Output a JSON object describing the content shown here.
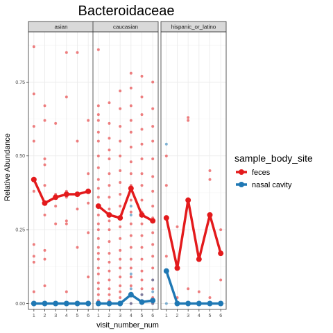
{
  "chart_data": {
    "type": "scatter",
    "title": "Bacteroidaceae",
    "xlabel": "visit_number_num",
    "ylabel": "Relative Abundance",
    "xlim": [
      0.5,
      6.5
    ],
    "ylim": [
      -0.02,
      0.92
    ],
    "x_ticks": [
      "1",
      "2",
      "3",
      "4",
      "5",
      "6"
    ],
    "y_ticks": [
      "0.00",
      "0.25",
      "0.50",
      "0.75"
    ],
    "y_tick_values": [
      0,
      0.25,
      0.5,
      0.75
    ],
    "grid": true,
    "legend": {
      "title": "sample_body_site",
      "position": "right",
      "entries": [
        {
          "label": "feces",
          "color": "#e31a1c"
        },
        {
          "label": "nasal cavity",
          "color": "#1f78b4"
        }
      ]
    },
    "colors": {
      "feces": "#e31a1c",
      "nasal cavity": "#1f78b4",
      "strip_bg": "#d9d9d9",
      "panel_border": "#333333",
      "grid": "#ebebeb"
    },
    "facets": [
      {
        "strip": "asian",
        "lines": [
          {
            "series": "feces",
            "x": [
              1,
              2,
              3,
              4,
              5,
              6
            ],
            "y": [
              0.42,
              0.34,
              0.36,
              0.37,
              0.37,
              0.38
            ]
          },
          {
            "series": "nasal cavity",
            "x": [
              1,
              2,
              3,
              4,
              5,
              6
            ],
            "y": [
              0.0,
              0.0,
              0.0,
              0.0,
              0.0,
              0.0
            ]
          }
        ],
        "points": {
          "feces": [
            [
              1,
              0.87
            ],
            [
              1,
              0.71
            ],
            [
              1,
              0.6
            ],
            [
              1,
              0.55
            ],
            [
              1,
              0.38
            ],
            [
              1,
              0.2
            ],
            [
              1,
              0.16
            ],
            [
              1,
              0.14
            ],
            [
              1,
              0.04
            ],
            [
              1,
              0.0
            ],
            [
              2,
              0.67
            ],
            [
              2,
              0.62
            ],
            [
              2,
              0.49
            ],
            [
              2,
              0.47
            ],
            [
              2,
              0.4
            ],
            [
              2,
              0.3
            ],
            [
              2,
              0.18
            ],
            [
              2,
              0.15
            ],
            [
              2,
              0.06
            ],
            [
              2,
              0.0
            ],
            [
              3,
              0.61
            ],
            [
              3,
              0.37
            ],
            [
              3,
              0.33
            ],
            [
              3,
              0.27
            ],
            [
              3,
              0.0
            ],
            [
              4,
              0.85
            ],
            [
              4,
              0.7
            ],
            [
              4,
              0.38
            ],
            [
              4,
              0.36
            ],
            [
              4,
              0.28
            ],
            [
              4,
              0.27
            ],
            [
              4,
              0.04
            ],
            [
              4,
              0.0
            ],
            [
              5,
              0.85
            ],
            [
              5,
              0.55
            ],
            [
              5,
              0.37
            ],
            [
              5,
              0.32
            ],
            [
              5,
              0.19
            ],
            [
              5,
              0.0
            ],
            [
              6,
              0.62
            ],
            [
              6,
              0.44
            ],
            [
              6,
              0.34
            ],
            [
              6,
              0.24
            ],
            [
              6,
              0.09
            ],
            [
              6,
              0.0
            ]
          ],
          "nasal cavity": [
            [
              1,
              0.0
            ],
            [
              2,
              0.0
            ],
            [
              3,
              0.0
            ],
            [
              4,
              0.0
            ],
            [
              5,
              0.0
            ],
            [
              6,
              0.0
            ]
          ]
        }
      },
      {
        "strip": "caucasian",
        "lines": [
          {
            "series": "feces",
            "x": [
              1,
              2,
              3,
              4,
              5,
              6
            ],
            "y": [
              0.33,
              0.3,
              0.29,
              0.39,
              0.3,
              0.28
            ]
          },
          {
            "series": "nasal cavity",
            "x": [
              1,
              2,
              3,
              4,
              5,
              6
            ],
            "y": [
              0.0,
              0.0,
              0.0,
              0.03,
              0.005,
              0.01
            ]
          }
        ],
        "points": {
          "feces": [
            [
              1,
              0.86
            ],
            [
              1,
              0.67
            ],
            [
              1,
              0.64
            ],
            [
              1,
              0.62
            ],
            [
              1,
              0.58
            ],
            [
              1,
              0.55
            ],
            [
              1,
              0.5
            ],
            [
              1,
              0.46
            ],
            [
              1,
              0.42
            ],
            [
              1,
              0.39
            ],
            [
              1,
              0.36
            ],
            [
              1,
              0.33
            ],
            [
              1,
              0.3
            ],
            [
              1,
              0.27
            ],
            [
              1,
              0.25
            ],
            [
              1,
              0.22
            ],
            [
              1,
              0.19
            ],
            [
              1,
              0.17
            ],
            [
              1,
              0.15
            ],
            [
              1,
              0.12
            ],
            [
              1,
              0.1
            ],
            [
              1,
              0.07
            ],
            [
              1,
              0.05
            ],
            [
              1,
              0.03
            ],
            [
              1,
              0.01
            ],
            [
              1,
              0.0
            ],
            [
              2,
              0.68
            ],
            [
              2,
              0.61
            ],
            [
              2,
              0.56
            ],
            [
              2,
              0.52
            ],
            [
              2,
              0.49
            ],
            [
              2,
              0.44
            ],
            [
              2,
              0.4
            ],
            [
              2,
              0.36
            ],
            [
              2,
              0.32
            ],
            [
              2,
              0.28
            ],
            [
              2,
              0.25
            ],
            [
              2,
              0.21
            ],
            [
              2,
              0.17
            ],
            [
              2,
              0.14
            ],
            [
              2,
              0.11
            ],
            [
              2,
              0.08
            ],
            [
              2,
              0.05
            ],
            [
              2,
              0.03
            ],
            [
              2,
              0.01
            ],
            [
              2,
              0.0
            ],
            [
              3,
              0.72
            ],
            [
              3,
              0.66
            ],
            [
              3,
              0.6
            ],
            [
              3,
              0.55
            ],
            [
              3,
              0.5
            ],
            [
              3,
              0.45
            ],
            [
              3,
              0.41
            ],
            [
              3,
              0.37
            ],
            [
              3,
              0.33
            ],
            [
              3,
              0.29
            ],
            [
              3,
              0.26
            ],
            [
              3,
              0.22
            ],
            [
              3,
              0.18
            ],
            [
              3,
              0.15
            ],
            [
              3,
              0.12
            ],
            [
              3,
              0.09
            ],
            [
              3,
              0.06
            ],
            [
              3,
              0.04
            ],
            [
              3,
              0.02
            ],
            [
              3,
              0.0
            ],
            [
              4,
              0.78
            ],
            [
              4,
              0.73
            ],
            [
              4,
              0.67
            ],
            [
              4,
              0.62
            ],
            [
              4,
              0.58
            ],
            [
              4,
              0.53
            ],
            [
              4,
              0.48
            ],
            [
              4,
              0.44
            ],
            [
              4,
              0.4
            ],
            [
              4,
              0.35
            ],
            [
              4,
              0.31
            ],
            [
              4,
              0.27
            ],
            [
              4,
              0.23
            ],
            [
              4,
              0.19
            ],
            [
              4,
              0.15
            ],
            [
              4,
              0.12
            ],
            [
              4,
              0.09
            ],
            [
              4,
              0.06
            ],
            [
              4,
              0.03
            ],
            [
              4,
              0.0
            ],
            [
              5,
              0.77
            ],
            [
              5,
              0.7
            ],
            [
              5,
              0.64
            ],
            [
              5,
              0.59
            ],
            [
              5,
              0.54
            ],
            [
              5,
              0.49
            ],
            [
              5,
              0.44
            ],
            [
              5,
              0.4
            ],
            [
              5,
              0.35
            ],
            [
              5,
              0.31
            ],
            [
              5,
              0.27
            ],
            [
              5,
              0.23
            ],
            [
              5,
              0.19
            ],
            [
              5,
              0.15
            ],
            [
              5,
              0.11
            ],
            [
              5,
              0.08
            ],
            [
              5,
              0.05
            ],
            [
              5,
              0.03
            ],
            [
              5,
              0.01
            ],
            [
              5,
              0.0
            ],
            [
              6,
              0.75
            ],
            [
              6,
              0.66
            ],
            [
              6,
              0.6
            ],
            [
              6,
              0.55
            ],
            [
              6,
              0.49
            ],
            [
              6,
              0.43
            ],
            [
              6,
              0.38
            ],
            [
              6,
              0.33
            ],
            [
              6,
              0.29
            ],
            [
              6,
              0.24
            ],
            [
              6,
              0.2
            ],
            [
              6,
              0.16
            ],
            [
              6,
              0.12
            ],
            [
              6,
              0.08
            ],
            [
              6,
              0.05
            ],
            [
              6,
              0.02
            ],
            [
              6,
              0.0
            ]
          ],
          "nasal cavity": [
            [
              1,
              0.0
            ],
            [
              2,
              0.0
            ],
            [
              3,
              0.0
            ],
            [
              4,
              0.33
            ],
            [
              4,
              0.3
            ],
            [
              4,
              0.1
            ],
            [
              4,
              0.05
            ],
            [
              4,
              0.0
            ],
            [
              5,
              0.03
            ],
            [
              5,
              0.0
            ],
            [
              6,
              0.08
            ],
            [
              6,
              0.04
            ],
            [
              6,
              0.0
            ]
          ]
        }
      },
      {
        "strip": "hispanic_or_latino",
        "lines": [
          {
            "series": "feces",
            "x": [
              1,
              2,
              3,
              4,
              5,
              6
            ],
            "y": [
              0.29,
              0.12,
              0.35,
              0.15,
              0.3,
              0.17
            ]
          },
          {
            "series": "nasal cavity",
            "x": [
              1,
              2,
              3,
              4,
              5,
              6
            ],
            "y": [
              0.11,
              0.0,
              0.0,
              0.0,
              0.0,
              0.0
            ]
          }
        ],
        "points": {
          "feces": [
            [
              1,
              0.5
            ],
            [
              1,
              0.4
            ],
            [
              1,
              0.29
            ],
            [
              1,
              0.16
            ],
            [
              2,
              0.26
            ],
            [
              2,
              0.12
            ],
            [
              2,
              0.02
            ],
            [
              3,
              0.63
            ],
            [
              3,
              0.62
            ],
            [
              3,
              0.35
            ],
            [
              3,
              0.05
            ],
            [
              4,
              0.15
            ],
            [
              4,
              0.04
            ],
            [
              5,
              0.45
            ],
            [
              5,
              0.42
            ],
            [
              5,
              0.3
            ],
            [
              5,
              0.02
            ],
            [
              6,
              0.25
            ],
            [
              6,
              0.17
            ],
            [
              6,
              0.08
            ]
          ],
          "nasal cavity": [
            [
              1,
              0.54
            ],
            [
              1,
              0.11
            ],
            [
              1,
              0.0
            ],
            [
              2,
              0.0
            ],
            [
              3,
              0.0
            ],
            [
              4,
              0.0
            ],
            [
              5,
              0.0
            ],
            [
              6,
              0.0
            ]
          ]
        }
      }
    ]
  }
}
